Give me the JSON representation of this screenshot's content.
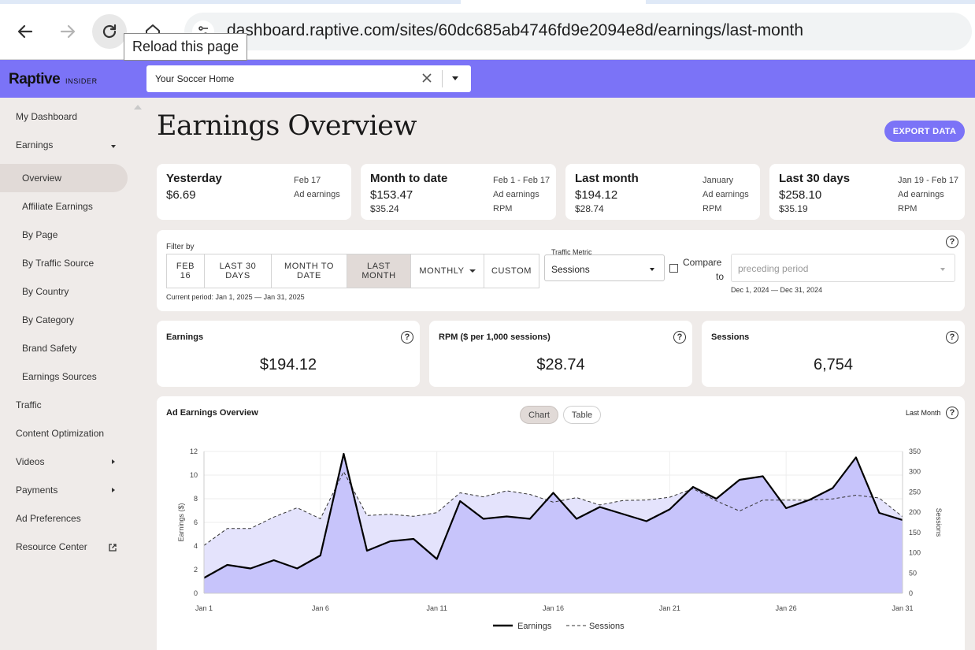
{
  "browser": {
    "url": "dashboard.raptive.com/sites/60dc685ab4746fd9e2094e8d/earnings/last-month",
    "tooltip": "Reload this page"
  },
  "app": {
    "logo": "Raptive",
    "logo_sub": "INSIDER",
    "site_selector": {
      "value": "Your Soccer Home"
    }
  },
  "sidebar": {
    "items": [
      {
        "label": "My Dashboard"
      },
      {
        "label": "Earnings"
      },
      {
        "label": "Overview"
      },
      {
        "label": "Affiliate Earnings"
      },
      {
        "label": "By Page"
      },
      {
        "label": "By Traffic Source"
      },
      {
        "label": "By Country"
      },
      {
        "label": "By Category"
      },
      {
        "label": "Brand Safety"
      },
      {
        "label": "Earnings Sources"
      },
      {
        "label": "Traffic"
      },
      {
        "label": "Content Optimization"
      },
      {
        "label": "Videos"
      },
      {
        "label": "Payments"
      },
      {
        "label": "Ad Preferences"
      },
      {
        "label": "Resource Center"
      }
    ]
  },
  "main": {
    "title": "Earnings Overview",
    "export_label": "EXPORT DATA",
    "summary_cards": [
      {
        "title": "Yesterday",
        "value": "$6.69",
        "sub": "",
        "period": "Feb 17",
        "value_label": "Ad earnings",
        "sub_label": ""
      },
      {
        "title": "Month to date",
        "value": "$153.47",
        "sub": "$35.24",
        "period": "Feb 1 - Feb 17",
        "value_label": "Ad earnings",
        "sub_label": "RPM"
      },
      {
        "title": "Last month",
        "value": "$194.12",
        "sub": "$28.74",
        "period": "January",
        "value_label": "Ad earnings",
        "sub_label": "RPM"
      },
      {
        "title": "Last 30 days",
        "value": "$258.10",
        "sub": "$35.19",
        "period": "Jan 19 - Feb 17",
        "value_label": "Ad earnings",
        "sub_label": "RPM"
      }
    ],
    "filter": {
      "label": "Filter by",
      "buttons": [
        {
          "l1": "FEB",
          "l2": "16"
        },
        {
          "l1": "LAST 30",
          "l2": "DAYS"
        },
        {
          "l1": "MONTH TO",
          "l2": "DATE"
        },
        {
          "l1": "LAST",
          "l2": "MONTH"
        },
        {
          "l1": "MONTHLY",
          "l2": ""
        },
        {
          "l1": "CUSTOM",
          "l2": ""
        }
      ],
      "current_period": "Current period: Jan 1, 2025 — Jan 31, 2025",
      "traffic_metric_label": "Traffic Metric",
      "traffic_metric_value": "Sessions",
      "compare_label_1": "Compare",
      "compare_label_2": "to",
      "compare_placeholder": "preceding period",
      "compare_period": "Dec 1, 2024 — Dec 31, 2024"
    },
    "kpis": [
      {
        "title": "Earnings",
        "value": "$194.12"
      },
      {
        "title": "RPM ($ per 1,000 sessions)",
        "value": "$28.74"
      },
      {
        "title": "Sessions",
        "value": "6,754"
      }
    ],
    "chart_panel": {
      "title": "Ad Earnings Overview",
      "toggle_chart": "Chart",
      "toggle_table": "Table",
      "range_label": "Last Month"
    }
  },
  "chart_data": {
    "type": "line",
    "x": [
      "Jan 1",
      "Jan 2",
      "Jan 3",
      "Jan 4",
      "Jan 5",
      "Jan 6",
      "Jan 7",
      "Jan 8",
      "Jan 9",
      "Jan 10",
      "Jan 11",
      "Jan 12",
      "Jan 13",
      "Jan 14",
      "Jan 15",
      "Jan 16",
      "Jan 17",
      "Jan 18",
      "Jan 19",
      "Jan 20",
      "Jan 21",
      "Jan 22",
      "Jan 23",
      "Jan 24",
      "Jan 25",
      "Jan 26",
      "Jan 27",
      "Jan 28",
      "Jan 29",
      "Jan 30",
      "Jan 31"
    ],
    "x_ticks": [
      "Jan 1",
      "Jan 6",
      "Jan 11",
      "Jan 16",
      "Jan 21",
      "Jan 26",
      "Jan 31"
    ],
    "series": [
      {
        "name": "Earnings",
        "axis": "left",
        "values": [
          1.3,
          2.4,
          2.1,
          2.8,
          2.1,
          3.2,
          11.8,
          3.6,
          4.4,
          4.6,
          2.9,
          7.8,
          6.3,
          6.5,
          6.3,
          8.5,
          6.3,
          7.3,
          6.7,
          6.1,
          7.1,
          9.0,
          8.0,
          9.6,
          9.9,
          7.2,
          7.9,
          8.9,
          11.5,
          6.8,
          6.2
        ]
      },
      {
        "name": "Sessions",
        "axis": "right",
        "values": [
          118,
          160,
          160,
          188,
          211,
          184,
          300,
          192,
          195,
          190,
          199,
          248,
          238,
          253,
          244,
          225,
          236,
          218,
          229,
          230,
          237,
          258,
          228,
          203,
          230,
          230,
          230,
          233,
          242,
          235,
          189
        ]
      }
    ],
    "y_left": {
      "label": "Earnings ($)",
      "ticks": [
        0,
        2,
        4,
        6,
        8,
        10,
        12
      ],
      "range": [
        0,
        12
      ]
    },
    "y_right": {
      "label": "Sessions",
      "ticks": [
        0,
        50,
        100,
        150,
        200,
        250,
        300,
        350
      ],
      "range": [
        0,
        350
      ]
    },
    "legend": {
      "position": "bottom",
      "items": [
        "Earnings",
        "Sessions"
      ]
    },
    "colors": {
      "earnings_fill": "#c7c4fb",
      "sessions_fill": "#e4e3fc",
      "line": "#000000"
    }
  }
}
